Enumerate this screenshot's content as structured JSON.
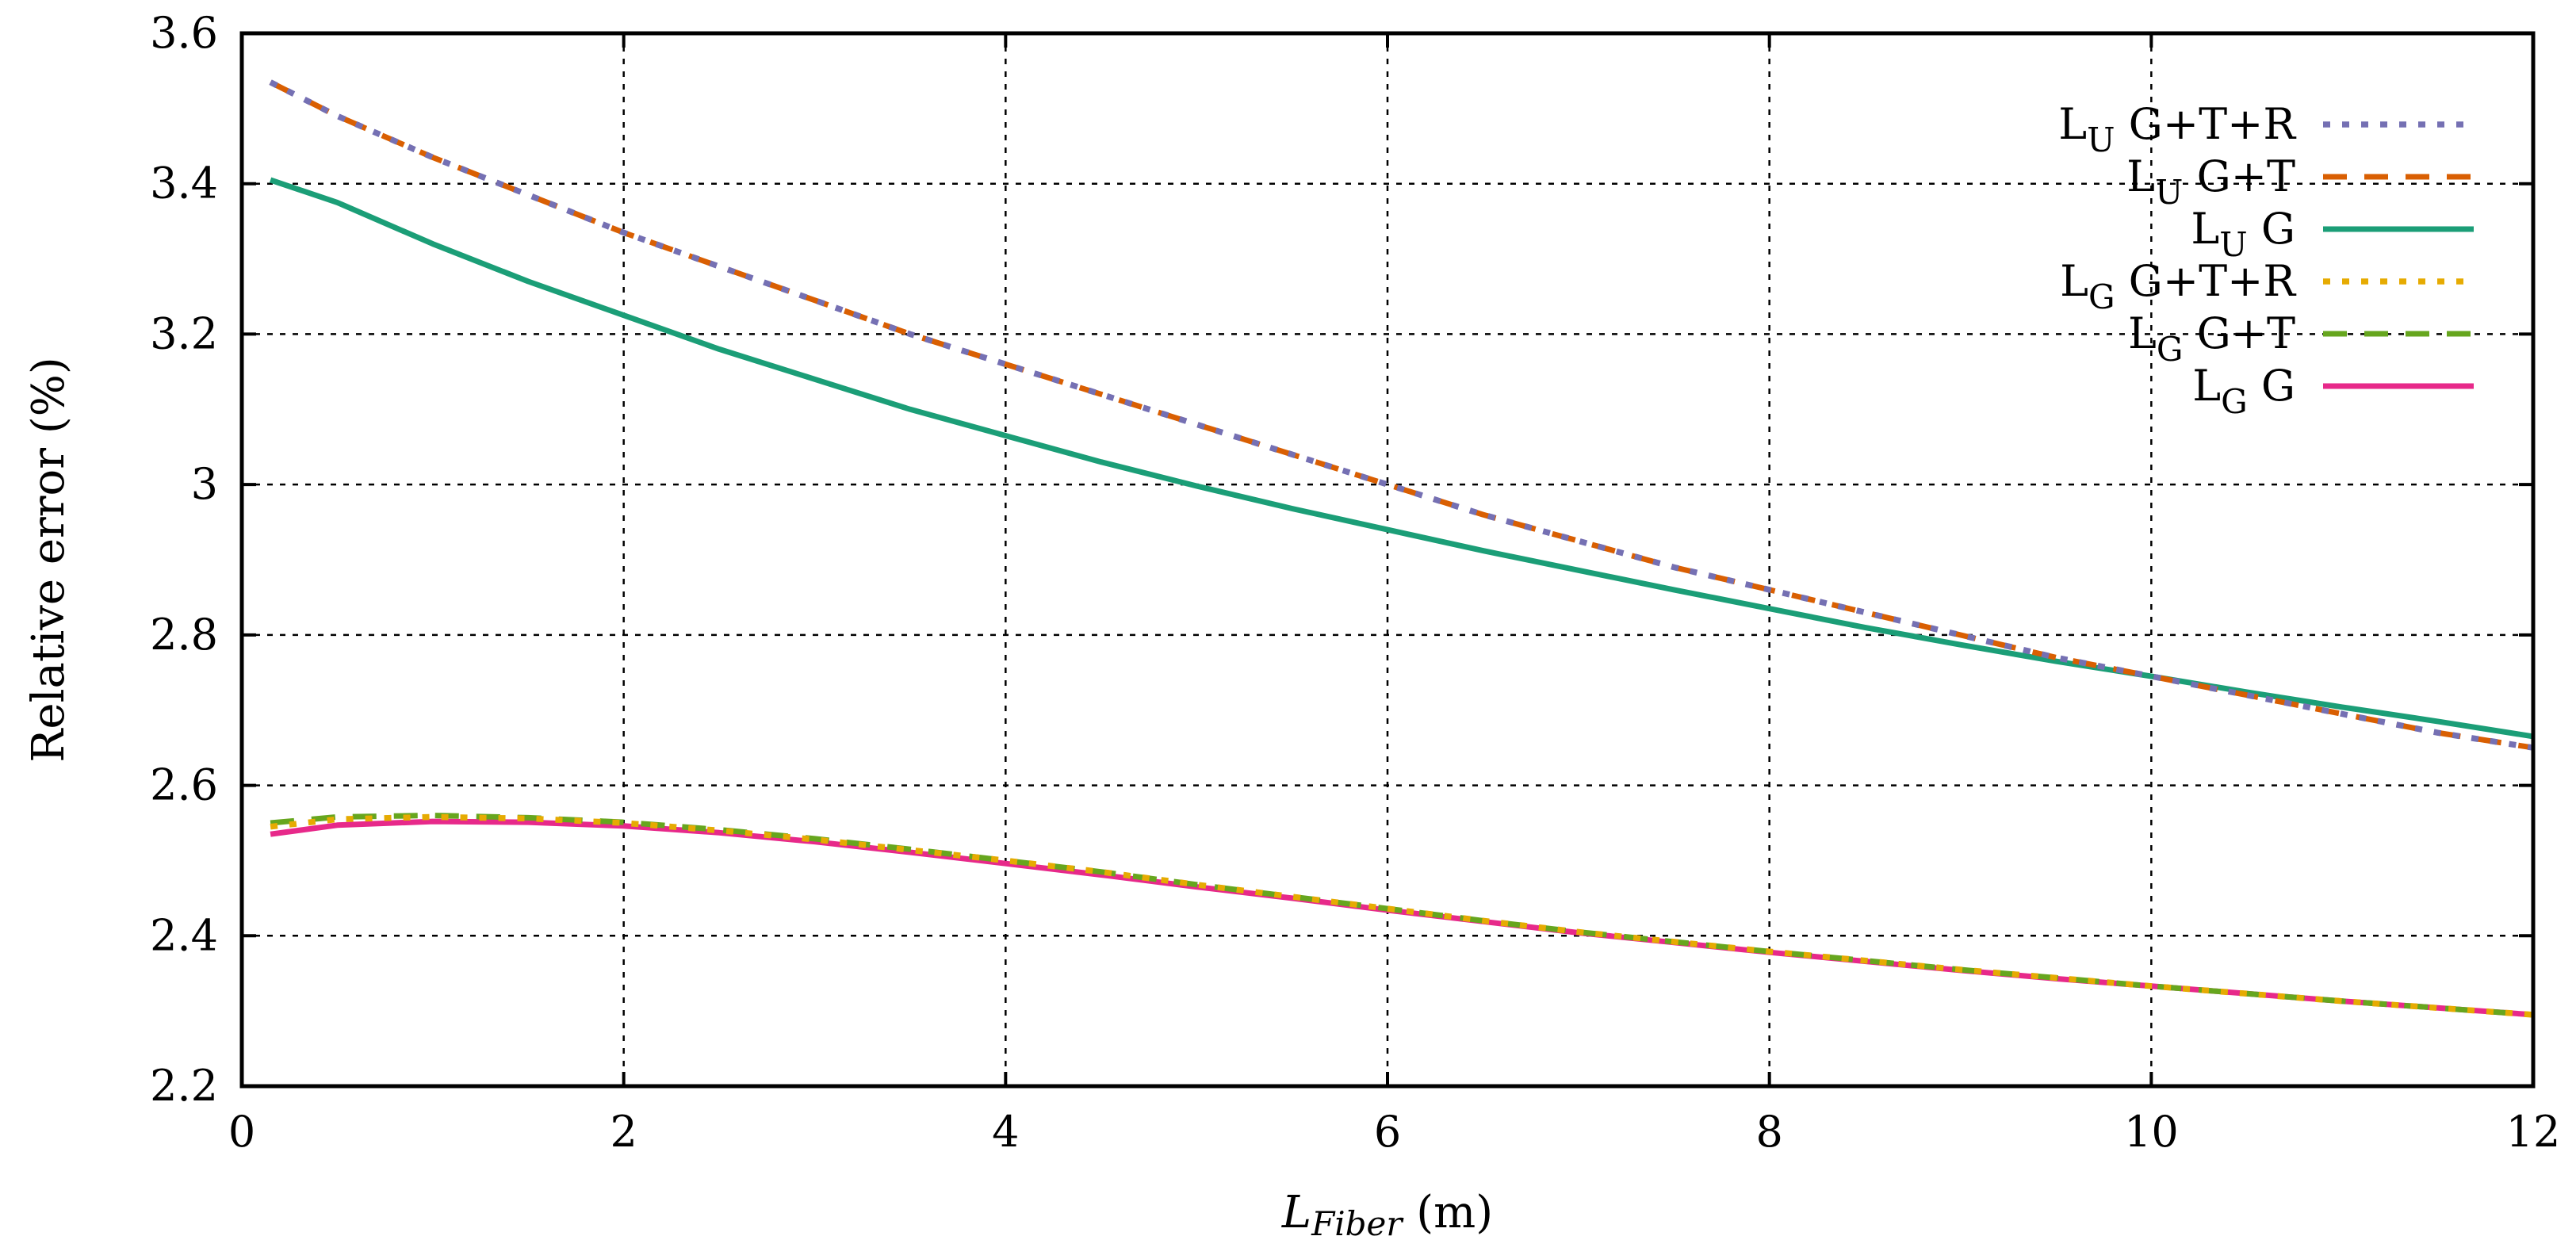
{
  "chart_data": {
    "type": "line",
    "title": "",
    "xlabel": {
      "main": "L",
      "sub": "Fiber",
      "unit": " (m)"
    },
    "ylabel": "Relative error (%)",
    "xlim": [
      0,
      12
    ],
    "ylim": [
      2.2,
      3.6
    ],
    "xticks": [
      0,
      2,
      4,
      6,
      8,
      10,
      12
    ],
    "yticks": [
      2.2,
      2.4,
      2.6,
      2.8,
      3.0,
      3.2,
      3.4,
      3.6
    ],
    "xtick_labels": [
      "0",
      "2",
      "4",
      "6",
      "8",
      "10",
      "12"
    ],
    "ytick_labels": [
      "2.2",
      "2.4",
      "2.6",
      "2.8",
      "3",
      "3.2",
      "3.4",
      "3.6"
    ],
    "grid": true,
    "legend_position": "top-right",
    "series": [
      {
        "name": "LU G+T+R",
        "prefix": "L",
        "sub": "U",
        "suffix": " G+T+R",
        "color": "#7570b3",
        "dash": "dotted",
        "x": [
          0.15,
          0.5,
          1,
          1.5,
          2,
          2.5,
          3,
          3.5,
          4,
          4.5,
          5,
          5.5,
          6,
          6.5,
          7,
          7.5,
          8,
          8.5,
          9,
          9.5,
          10,
          10.5,
          11,
          11.5,
          12
        ],
        "y": [
          3.535,
          3.49,
          3.435,
          3.385,
          3.335,
          3.29,
          3.245,
          3.2,
          3.16,
          3.12,
          3.08,
          3.04,
          3.0,
          2.96,
          2.925,
          2.89,
          2.86,
          2.83,
          2.8,
          2.77,
          2.745,
          2.72,
          2.695,
          2.67,
          2.65
        ]
      },
      {
        "name": "LU G+T",
        "prefix": "L",
        "sub": "U",
        "suffix": " G+T",
        "color": "#d95f02",
        "dash": "dashed",
        "x": [
          0.15,
          0.5,
          1,
          1.5,
          2,
          2.5,
          3,
          3.5,
          4,
          4.5,
          5,
          5.5,
          6,
          6.5,
          7,
          7.5,
          8,
          8.5,
          9,
          9.5,
          10,
          10.5,
          11,
          11.5,
          12
        ],
        "y": [
          3.535,
          3.49,
          3.435,
          3.385,
          3.335,
          3.29,
          3.245,
          3.2,
          3.16,
          3.12,
          3.08,
          3.04,
          3.0,
          2.96,
          2.925,
          2.89,
          2.86,
          2.83,
          2.8,
          2.77,
          2.745,
          2.72,
          2.695,
          2.67,
          2.65
        ]
      },
      {
        "name": "LU G",
        "prefix": "L",
        "sub": "U",
        "suffix": " G",
        "color": "#1b9e77",
        "dash": "solid",
        "x": [
          0.15,
          0.5,
          1,
          1.5,
          2,
          2.5,
          3,
          3.5,
          4,
          4.5,
          5,
          5.5,
          6,
          6.5,
          7,
          7.5,
          8,
          8.5,
          9,
          9.5,
          10,
          10.5,
          11,
          11.5,
          12
        ],
        "y": [
          3.405,
          3.375,
          3.32,
          3.27,
          3.225,
          3.18,
          3.14,
          3.1,
          3.065,
          3.03,
          2.998,
          2.968,
          2.94,
          2.912,
          2.886,
          2.86,
          2.835,
          2.81,
          2.787,
          2.765,
          2.745,
          2.724,
          2.704,
          2.685,
          2.665
        ]
      },
      {
        "name": "LG G+T+R",
        "prefix": "L",
        "sub": "G",
        "suffix": " G+T+R",
        "color": "#e6ab02",
        "dash": "dotted",
        "x": [
          0.15,
          0.5,
          1,
          1.5,
          2,
          2.5,
          3,
          3.5,
          4,
          4.5,
          5,
          5.5,
          6,
          6.5,
          7,
          7.5,
          8,
          8.5,
          9,
          9.5,
          10,
          10.5,
          11,
          11.5,
          12
        ],
        "y": [
          2.545,
          2.555,
          2.558,
          2.556,
          2.55,
          2.54,
          2.528,
          2.514,
          2.5,
          2.485,
          2.468,
          2.452,
          2.436,
          2.42,
          2.405,
          2.392,
          2.379,
          2.367,
          2.355,
          2.344,
          2.333,
          2.323,
          2.313,
          2.304,
          2.295
        ]
      },
      {
        "name": "LG G+T",
        "prefix": "L",
        "sub": "G",
        "suffix": " G+T",
        "color": "#66a61e",
        "dash": "dashed",
        "x": [
          0.15,
          0.5,
          1,
          1.5,
          2,
          2.5,
          3,
          3.5,
          4,
          4.5,
          5,
          5.5,
          6,
          6.5,
          7,
          7.5,
          8,
          8.5,
          9,
          9.5,
          10,
          10.5,
          11,
          11.5,
          12
        ],
        "y": [
          2.55,
          2.558,
          2.56,
          2.557,
          2.551,
          2.541,
          2.529,
          2.515,
          2.5,
          2.485,
          2.468,
          2.452,
          2.436,
          2.42,
          2.405,
          2.392,
          2.379,
          2.367,
          2.355,
          2.344,
          2.333,
          2.323,
          2.313,
          2.304,
          2.295
        ]
      },
      {
        "name": "LG G",
        "prefix": "L",
        "sub": "G",
        "suffix": " G",
        "color": "#e7298a",
        "dash": "solid",
        "x": [
          0.15,
          0.5,
          1,
          1.5,
          2,
          2.5,
          3,
          3.5,
          4,
          4.5,
          5,
          5.5,
          6,
          6.5,
          7,
          7.5,
          8,
          8.5,
          9,
          9.5,
          10,
          10.5,
          11,
          11.5,
          12
        ],
        "y": [
          2.535,
          2.547,
          2.552,
          2.551,
          2.546,
          2.537,
          2.525,
          2.511,
          2.496,
          2.481,
          2.465,
          2.45,
          2.434,
          2.419,
          2.404,
          2.391,
          2.378,
          2.366,
          2.354,
          2.343,
          2.333,
          2.323,
          2.313,
          2.304,
          2.295
        ]
      }
    ]
  }
}
